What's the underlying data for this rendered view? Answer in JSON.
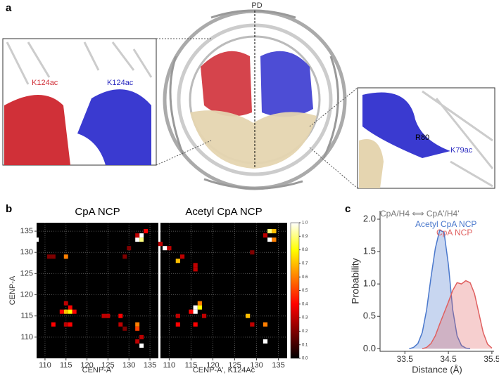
{
  "panel_a": {
    "label": "a",
    "pd_label": "PD",
    "left_inset": {
      "labels": [
        "K124ac",
        "K124ac"
      ]
    },
    "right_inset": {
      "labels": [
        "R80",
        "K79ac"
      ]
    }
  },
  "panel_b": {
    "label": "b"
  },
  "panel_c": {
    "label": "c"
  },
  "chart_data": [
    {
      "type": "heatmap",
      "title": "CpA NCP",
      "x_label": "CENP-A'",
      "y_label": "CENP-A",
      "xlim": [
        108,
        137
      ],
      "ylim": [
        105,
        137
      ],
      "xticks": [
        110,
        115,
        120,
        125,
        130,
        135
      ],
      "yticks": [
        110,
        115,
        120,
        125,
        130,
        135
      ],
      "grid": true,
      "show_ytick_labels": true,
      "colormap": "hot",
      "clim": [
        0,
        1
      ],
      "x": [
        133,
        132,
        133,
        134,
        132,
        108,
        111,
        112,
        115,
        129,
        115,
        116,
        115,
        116,
        117,
        114,
        112,
        115,
        116,
        124,
        125,
        128,
        128,
        129,
        132,
        132,
        133,
        133,
        132,
        130
      ],
      "y": [
        134,
        133,
        133,
        135,
        134,
        133,
        129,
        129,
        129,
        129,
        118,
        117,
        116,
        116,
        116,
        116,
        113,
        113,
        113,
        115,
        115,
        115,
        113,
        112,
        113,
        112,
        108,
        110,
        109,
        131
      ],
      "values": [
        1.0,
        1.0,
        0.9,
        0.4,
        0.3,
        1.0,
        0.2,
        0.2,
        0.6,
        0.2,
        0.3,
        0.4,
        0.7,
        0.8,
        0.4,
        0.4,
        0.4,
        0.3,
        0.4,
        0.3,
        0.3,
        0.4,
        0.3,
        0.2,
        0.6,
        0.5,
        1.0,
        0.3,
        0.3,
        0.2
      ]
    },
    {
      "type": "heatmap",
      "title": "Acetyl CpA NCP",
      "x_label": "CENP-A', K124Ac",
      "xlim": [
        108,
        137
      ],
      "ylim": [
        105,
        137
      ],
      "xticks": [
        110,
        115,
        120,
        125,
        130,
        135
      ],
      "yticks": [
        110,
        115,
        120,
        125,
        130,
        135
      ],
      "grid": true,
      "show_ytick_labels": false,
      "colormap": "hot",
      "clim": [
        0,
        1
      ],
      "colorbar_ticks": [
        {
          "value": 0,
          "label": "0.0"
        },
        0.1,
        0.2,
        0.3,
        0.4,
        0.5,
        0.6,
        0.7,
        0.8,
        0.9,
        {
          "value": 1,
          "label": "1.0"
        }
      ],
      "x": [
        133,
        134,
        132,
        133,
        134,
        108,
        109,
        110,
        112,
        113,
        116,
        116,
        117,
        116,
        117,
        115,
        116,
        118,
        112,
        112,
        116,
        128,
        129,
        132,
        132,
        129
      ],
      "y": [
        135,
        135,
        134,
        133,
        133,
        132,
        131,
        131,
        128,
        129,
        127,
        126,
        118,
        117,
        117,
        116,
        116,
        115,
        115,
        113,
        113,
        115,
        113,
        113,
        109,
        130
      ],
      "values": [
        0.9,
        0.7,
        0.3,
        1.0,
        0.6,
        0.3,
        1.0,
        0.3,
        0.7,
        0.3,
        0.3,
        0.3,
        0.6,
        1.0,
        0.8,
        0.4,
        1.0,
        0.3,
        0.3,
        0.4,
        0.4,
        0.7,
        0.3,
        0.6,
        1.0,
        0.2
      ]
    },
    {
      "type": "line",
      "annotation": "CpA/H4 ⟺ CpA'/H4'",
      "x_label": "Distance (Å)",
      "y_label": "Probability",
      "xlim": [
        32.93,
        35.55
      ],
      "ylim": [
        -0.04,
        2.13
      ],
      "xticks": [
        33.5,
        34.5,
        35.5
      ],
      "yticks": [
        {
          "value": 0,
          "label": "0.0"
        },
        0.5,
        {
          "value": 1,
          "label": "1.0"
        },
        1.5,
        {
          "value": 2,
          "label": "2.0"
        }
      ],
      "series": [
        {
          "name": "Acetyl CpA NCP",
          "color": "#4a78cc",
          "x": [
            33.6,
            33.7,
            33.8,
            33.9,
            34.0,
            34.1,
            34.2,
            34.3,
            34.4,
            34.5,
            34.6,
            34.7,
            34.8,
            34.9,
            35.0
          ],
          "values": [
            0,
            0.02,
            0.08,
            0.25,
            0.6,
            1.1,
            1.55,
            1.83,
            1.8,
            1.3,
            0.6,
            0.2,
            0.05,
            0.01,
            0
          ]
        },
        {
          "name": "CpA NCP",
          "color": "#e06060",
          "x": [
            33.9,
            34.0,
            34.1,
            34.2,
            34.3,
            34.4,
            34.5,
            34.6,
            34.7,
            34.8,
            34.9,
            35.0,
            35.1,
            35.2,
            35.3,
            35.4,
            35.5
          ],
          "values": [
            0,
            0.02,
            0.08,
            0.2,
            0.38,
            0.55,
            0.72,
            0.9,
            1.02,
            1.0,
            1.05,
            1.02,
            0.85,
            0.55,
            0.25,
            0.07,
            0.01
          ]
        }
      ]
    }
  ]
}
